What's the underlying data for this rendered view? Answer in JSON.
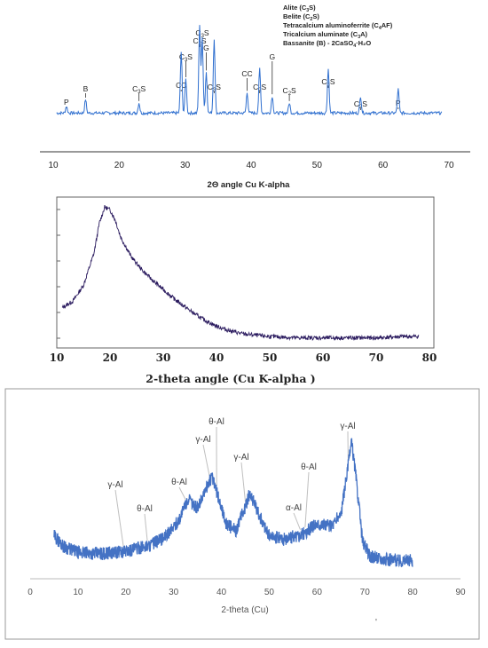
{
  "chart_data": [
    {
      "type": "line",
      "title": "",
      "xlabel": "2Θ angle Cu K-alpha",
      "ylabel": "",
      "xlim": [
        10,
        70
      ],
      "x_ticks": [
        10,
        20,
        30,
        40,
        50,
        60,
        70
      ],
      "line_color": "#2f6fcf",
      "grid": false,
      "legend_position": "top-right",
      "legend": [
        {
          "base": "Alite (C",
          "sub": "3",
          "tail": "S)"
        },
        {
          "base": "Belite (C",
          "sub": "2",
          "tail": "S)"
        },
        {
          "base": "Tetracalcium aluminoferrite (C",
          "sub": "4",
          "tail": "AF)"
        },
        {
          "base": "Tricalcium aluminate (C",
          "sub": "3",
          "tail": "A)"
        },
        {
          "base": "Bassanite (B) - 2CaSO",
          "sub": "4",
          "tail": "·H₂O"
        }
      ],
      "baseline": 2,
      "peaks": [
        {
          "x": 12.0,
          "h": 2,
          "label": "P",
          "sub": ""
        },
        {
          "x": 14.9,
          "h": 4,
          "label": "B",
          "sub": ""
        },
        {
          "x": 23.0,
          "h": 3,
          "label": "C",
          "sub": "3",
          "tail": "S"
        },
        {
          "x": 29.4,
          "h": 18,
          "label": "CC",
          "sub": ""
        },
        {
          "x": 30.1,
          "h": 10,
          "label": "C",
          "sub": "3",
          "tail": "S"
        },
        {
          "x": 32.2,
          "h": 26,
          "label": "C",
          "sub": "2",
          "tail": "S"
        },
        {
          "x": 32.6,
          "h": 22,
          "label": "C",
          "sub": "3",
          "tail": "S"
        },
        {
          "x": 33.2,
          "h": 12,
          "label": "G",
          "sub": ""
        },
        {
          "x": 34.4,
          "h": 22,
          "label": "C",
          "sub": "3",
          "tail": "S"
        },
        {
          "x": 39.4,
          "h": 6,
          "label": "CC",
          "sub": ""
        },
        {
          "x": 41.3,
          "h": 13,
          "label": "C",
          "sub": "2",
          "tail": "S"
        },
        {
          "x": 43.2,
          "h": 5,
          "label": "G",
          "sub": ""
        },
        {
          "x": 45.8,
          "h": 3,
          "label": "C",
          "sub": "2",
          "tail": "S"
        },
        {
          "x": 51.7,
          "h": 13,
          "label": "C",
          "sub": "3",
          "tail": "S"
        },
        {
          "x": 56.6,
          "h": 5,
          "label": "C",
          "sub": "2",
          "tail": "S"
        },
        {
          "x": 62.3,
          "h": 7,
          "label": "P",
          "sub": ""
        }
      ],
      "ylim": [
        0,
        30
      ]
    },
    {
      "type": "line",
      "title": "",
      "xlabel": "2-theta angle (Cu K-alpha )",
      "ylabel": "",
      "xlim": [
        10,
        80
      ],
      "x_ticks": [
        10,
        20,
        30,
        40,
        50,
        60,
        70,
        80
      ],
      "line_color": "#2a1a5e",
      "grid": false,
      "x": [
        11,
        13,
        15,
        17,
        18,
        19,
        20,
        21,
        22,
        24,
        26,
        28,
        30,
        32,
        34,
        36,
        38,
        40,
        42,
        45,
        50,
        55,
        60,
        65,
        70,
        75,
        78
      ],
      "y": [
        23,
        28,
        40,
        65,
        88,
        100,
        98,
        90,
        77,
        62,
        52,
        44,
        37,
        30,
        24,
        18,
        13,
        9,
        6,
        3,
        1,
        0,
        0,
        0,
        0,
        1,
        1
      ],
      "ylim": [
        -5,
        105
      ]
    },
    {
      "type": "line",
      "title": "",
      "xlabel": "2-theta (Cu)",
      "ylabel": "",
      "xlim": [
        0,
        90
      ],
      "x_ticks": [
        0,
        10,
        20,
        30,
        40,
        50,
        60,
        70,
        80,
        90
      ],
      "line_color": "#4472c4",
      "grid": false,
      "x": [
        5,
        7,
        10,
        15,
        20,
        25,
        28,
        31,
        33,
        35,
        37,
        38,
        39.5,
        41,
        43,
        45,
        46,
        47.5,
        50,
        53,
        57,
        60,
        63,
        65,
        66.5,
        67.2,
        68,
        69.5,
        71,
        75,
        80
      ],
      "y": [
        22,
        13,
        8,
        7,
        9,
        14,
        20,
        34,
        52,
        45,
        63,
        71,
        52,
        32,
        26,
        46,
        58,
        42,
        22,
        19,
        23,
        32,
        30,
        40,
        80,
        100,
        76,
        18,
        5,
        2,
        1
      ],
      "ylim": [
        -5,
        110
      ],
      "annotations": [
        {
          "label": "γ-Al",
          "x": 19.5
        },
        {
          "label": "θ-Al",
          "x": 24.5
        },
        {
          "label": "θ-Al",
          "x": 32.5
        },
        {
          "label": "θ-Al",
          "x": 39.0
        },
        {
          "label": "γ-Al",
          "x": 37.5
        },
        {
          "label": "γ-Al",
          "x": 45.0
        },
        {
          "label": "θ-Al",
          "x": 57.5
        },
        {
          "label": "α-Al",
          "x": 56.5
        },
        {
          "label": "γ-Al",
          "x": 66.5
        }
      ]
    }
  ],
  "misc": {
    "stray_mark": "'"
  }
}
